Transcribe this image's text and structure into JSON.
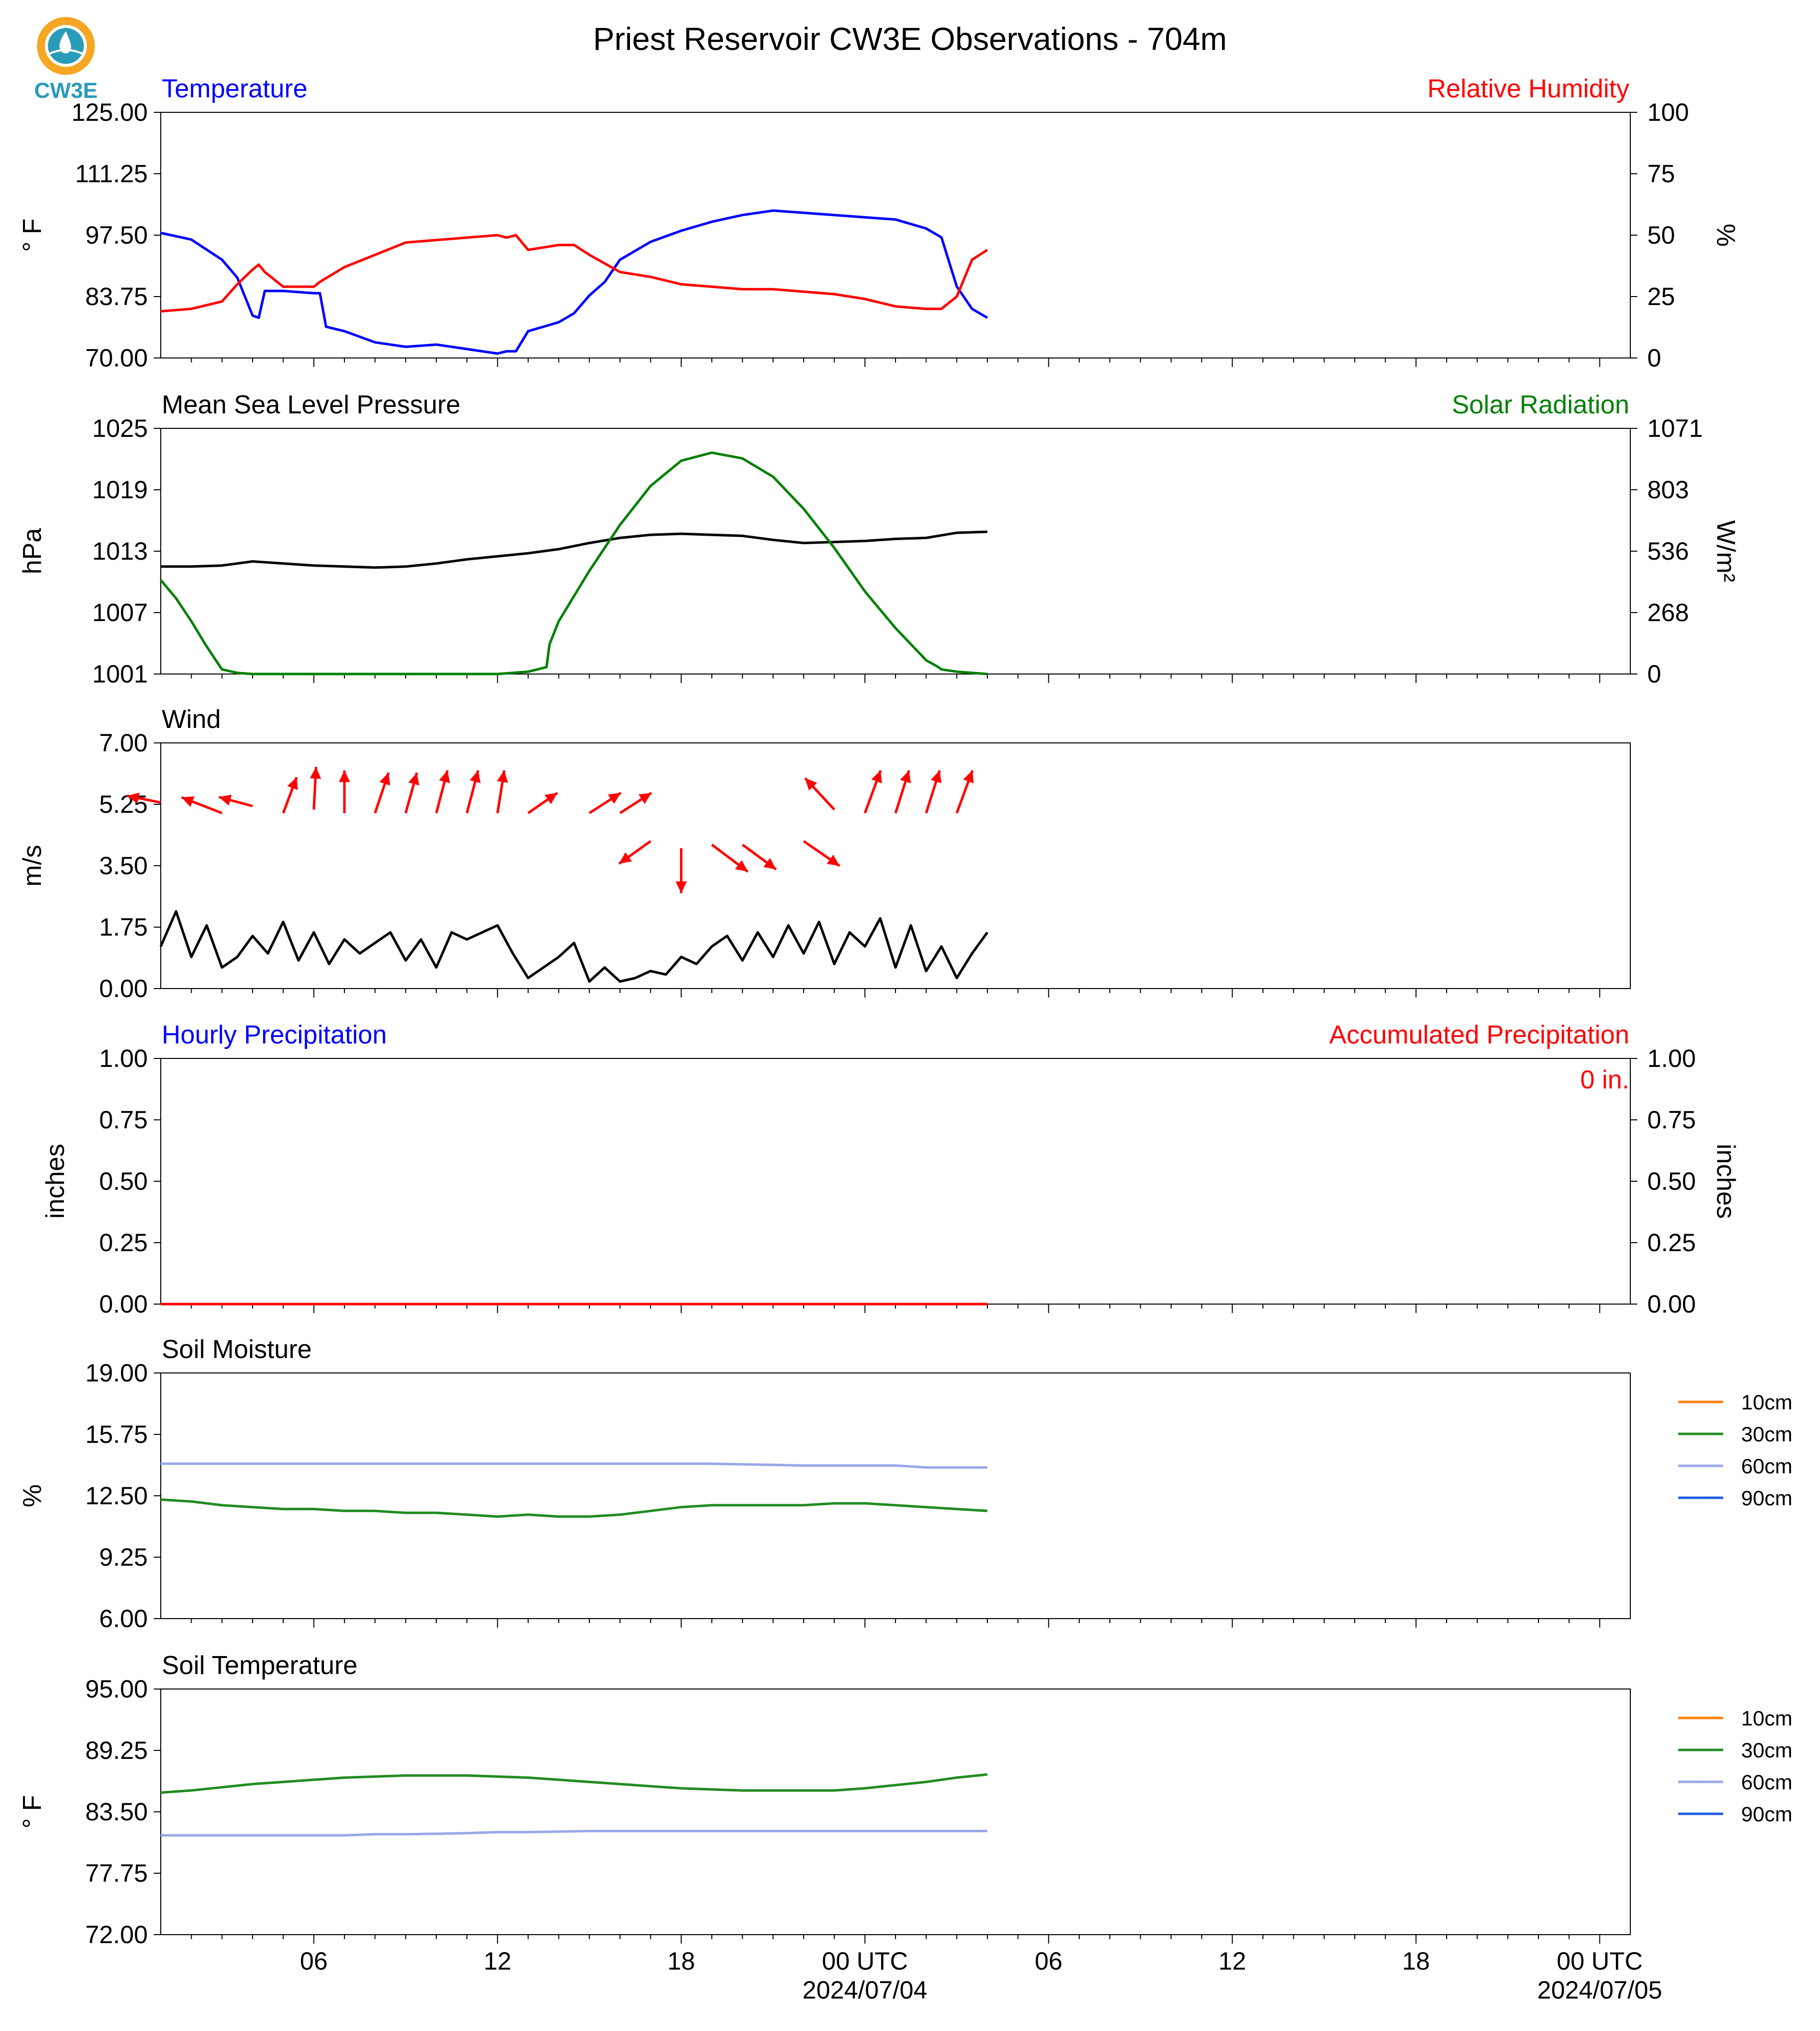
{
  "title": "Priest Reservoir CW3E Observations - 704m",
  "logo_text": "CW3E",
  "colors": {
    "temperature": "#0000ff",
    "humidity": "#ff0000",
    "solar": "#008000",
    "black": "#000000",
    "soil_10": "#ff7f0e",
    "soil_30": "#228b22",
    "soil_60": "#9aa8e8",
    "soil_90": "#1f5fe0",
    "logo_orange": "#f5a623",
    "logo_teal": "#2a9bb8"
  },
  "x_axis": {
    "range_hours": [
      0,
      48
    ],
    "ticks": [
      {
        "h": 5,
        "label": "06"
      },
      {
        "h": 11,
        "label": "12"
      },
      {
        "h": 17,
        "label": "18"
      },
      {
        "h": 23,
        "label": "00 UTC",
        "sub": "2024/07/04"
      },
      {
        "h": 29,
        "label": "06"
      },
      {
        "h": 35,
        "label": "12"
      },
      {
        "h": 41,
        "label": "18"
      },
      {
        "h": 47,
        "label": "00 UTC",
        "sub": "2024/07/05"
      }
    ],
    "data_end_hour": 27
  },
  "chart_data": [
    {
      "type": "line",
      "panel": "temperature_humidity",
      "left_title": "Temperature",
      "right_title": "Relative Humidity",
      "ylabel": "° F",
      "ylabel_right": "%",
      "ylim": [
        70,
        125
      ],
      "ylim_right": [
        0,
        100
      ],
      "yticks": [
        "125.00",
        "111.25",
        "97.50",
        "83.75",
        "70.00"
      ],
      "yticks_right": [
        "100",
        "75",
        "50",
        "25",
        "0"
      ],
      "series": [
        {
          "name": "Temperature",
          "axis": "left",
          "color": "#0000ff",
          "x": [
            0,
            1,
            2,
            2.5,
            3,
            3.2,
            3.4,
            4,
            5,
            5.2,
            5.4,
            6,
            7,
            8,
            9,
            10,
            11,
            11.3,
            11.6,
            12,
            12.5,
            13,
            13.5,
            14,
            14.5,
            15,
            16,
            17,
            18,
            19,
            20,
            21,
            22,
            23,
            24,
            25,
            25.5,
            26,
            26.5,
            27
          ],
          "y": [
            98,
            96.5,
            92,
            88,
            79.5,
            79,
            85,
            85,
            84.5,
            84.5,
            77,
            76,
            73.5,
            72.5,
            73,
            72,
            71,
            71.5,
            71.5,
            76,
            77,
            78,
            80,
            84,
            87,
            92,
            96,
            98.5,
            100.5,
            102,
            103,
            102.5,
            102,
            101.5,
            101,
            99,
            97,
            86,
            81,
            79
          ]
        },
        {
          "name": "Relative Humidity",
          "axis": "right",
          "color": "#ff0000",
          "x": [
            0,
            1,
            2,
            2.5,
            3,
            3.2,
            3.4,
            4,
            5,
            5.2,
            6,
            7,
            8,
            9,
            10,
            11,
            11.3,
            11.6,
            12,
            13,
            13.5,
            14,
            15,
            16,
            17,
            18,
            19,
            20,
            21,
            22,
            23,
            24,
            25,
            25.5,
            26,
            26.5,
            27
          ],
          "y": [
            19,
            20,
            23,
            30,
            36,
            38,
            35,
            29,
            29,
            31,
            37,
            42,
            47,
            48,
            49,
            50,
            49,
            50,
            44,
            46,
            46,
            42,
            35,
            33,
            30,
            29,
            28,
            28,
            27,
            26,
            24,
            21,
            20,
            20,
            25,
            40,
            44
          ]
        }
      ]
    },
    {
      "type": "line",
      "panel": "pressure_solar",
      "left_title": "Mean Sea Level Pressure",
      "right_title": "Solar Radiation",
      "ylabel": "hPa",
      "ylabel_right": "W/m²",
      "ylim": [
        1001,
        1025
      ],
      "ylim_right": [
        0,
        1071
      ],
      "yticks": [
        "1025",
        "1019",
        "1013",
        "1007",
        "1001"
      ],
      "yticks_right": [
        "1071",
        "803",
        "536",
        "268",
        "0"
      ],
      "series": [
        {
          "name": "Mean Sea Level Pressure",
          "axis": "left",
          "color": "#000000",
          "x": [
            0,
            1,
            2,
            3,
            4,
            5,
            6,
            7,
            8,
            9,
            10,
            11,
            12,
            13,
            14,
            15,
            16,
            17,
            18,
            19,
            20,
            21,
            22,
            23,
            24,
            25,
            26,
            27
          ],
          "y": [
            1011.5,
            1011.5,
            1011.6,
            1012,
            1011.8,
            1011.6,
            1011.5,
            1011.4,
            1011.5,
            1011.8,
            1012.2,
            1012.5,
            1012.8,
            1013.2,
            1013.8,
            1014.3,
            1014.6,
            1014.7,
            1014.6,
            1014.5,
            1014.1,
            1013.8,
            1013.9,
            1014.0,
            1014.2,
            1014.3,
            1014.8,
            1014.9
          ]
        },
        {
          "name": "Solar Radiation",
          "axis": "right",
          "color": "#008000",
          "x": [
            0,
            0.5,
            1,
            1.5,
            1.9,
            2,
            2.5,
            3,
            5,
            7,
            9,
            11,
            12,
            12.6,
            12.7,
            13,
            14,
            15,
            16,
            17,
            18,
            19,
            20,
            21,
            22,
            23,
            24,
            25,
            25.4,
            25.5,
            26,
            27
          ],
          "y": [
            410,
            330,
            230,
            120,
            40,
            20,
            5,
            0,
            0,
            0,
            0,
            0,
            10,
            30,
            130,
            230,
            450,
            650,
            820,
            930,
            965,
            940,
            860,
            720,
            550,
            360,
            200,
            60,
            30,
            20,
            10,
            0
          ]
        }
      ]
    },
    {
      "type": "line",
      "panel": "wind",
      "left_title": "Wind",
      "ylabel": "m/s",
      "ylim": [
        0,
        7
      ],
      "yticks": [
        "7.00",
        "5.25",
        "3.50",
        "1.75",
        "0.00"
      ],
      "series": [
        {
          "name": "Wind",
          "axis": "left",
          "color": "#000000",
          "x": [
            0,
            0.5,
            1,
            1.5,
            2,
            2.5,
            3,
            3.5,
            4,
            4.5,
            5,
            5.5,
            6,
            6.5,
            7,
            7.5,
            8,
            8.5,
            9,
            9.5,
            10,
            10.5,
            11,
            11.5,
            12,
            12.5,
            13,
            13.5,
            14,
            14.5,
            15,
            15.5,
            16,
            16.5,
            17,
            17.5,
            18,
            18.5,
            19,
            19.5,
            20,
            20.5,
            21,
            21.5,
            22,
            22.5,
            23,
            23.5,
            24,
            24.5,
            25,
            25.5,
            26,
            26.5,
            27
          ],
          "y": [
            1.2,
            2.2,
            0.9,
            1.8,
            0.6,
            0.9,
            1.5,
            1.0,
            1.9,
            0.8,
            1.6,
            0.7,
            1.4,
            1.0,
            1.3,
            1.6,
            0.8,
            1.4,
            0.6,
            1.6,
            1.4,
            1.6,
            1.8,
            1.0,
            0.3,
            0.6,
            0.9,
            1.3,
            0.2,
            0.6,
            0.2,
            0.3,
            0.5,
            0.4,
            0.9,
            0.7,
            1.2,
            1.5,
            0.8,
            1.6,
            0.9,
            1.8,
            1.0,
            1.9,
            0.7,
            1.6,
            1.2,
            2.0,
            0.6,
            1.8,
            0.5,
            1.2,
            0.3,
            1.0,
            1.6
          ]
        },
        {
          "name": "Wind Direction",
          "type": "quiver",
          "color": "#ff0000",
          "x": [
            0,
            2,
            3,
            4,
            5,
            6,
            7,
            8,
            9,
            10,
            11,
            12,
            14,
            15,
            16,
            17,
            18,
            19,
            21,
            22,
            23,
            24,
            25,
            26
          ],
          "y": [
            5.3,
            5.0,
            5.2,
            5.0,
            5.1,
            5.0,
            5.0,
            5.0,
            5.0,
            5.0,
            5.0,
            5.0,
            5.0,
            5.0,
            4.2,
            4.0,
            4.1,
            4.1,
            4.2,
            5.1,
            5.0,
            5.0,
            5.0,
            5.0
          ],
          "u": [
            -1.5,
            -1.8,
            -1.5,
            0.6,
            0.1,
            0,
            0.6,
            0.5,
            0.5,
            0.5,
            0.3,
            1.3,
            1.4,
            1.4,
            -1.4,
            0,
            1.6,
            1.5,
            1.6,
            -1.3,
            0.7,
            0.6,
            0.6,
            0.7
          ],
          "v": [
            0.3,
            0.7,
            0.4,
            1.6,
            1.9,
            1.9,
            1.8,
            1.8,
            1.9,
            1.9,
            1.9,
            0.9,
            0.9,
            0.9,
            -1.0,
            -2.0,
            -1.2,
            -1.1,
            -1.1,
            1.4,
            1.9,
            1.9,
            1.9,
            1.9
          ]
        }
      ]
    },
    {
      "type": "line",
      "panel": "precipitation",
      "left_title": "Hourly Precipitation",
      "right_title": "Accumulated Precipitation",
      "annotation": "0 in.",
      "ylabel": "inches",
      "ylabel_right": "inches",
      "ylim": [
        0,
        1
      ],
      "ylim_right": [
        0,
        1
      ],
      "yticks": [
        "1.00",
        "0.75",
        "0.50",
        "0.25",
        "0.00"
      ],
      "yticks_right": [
        "1.00",
        "0.75",
        "0.50",
        "0.25",
        "0.00"
      ],
      "series": [
        {
          "name": "Hourly Precipitation",
          "axis": "left",
          "color": "#0000ff",
          "x": [
            0,
            27
          ],
          "y": [
            0,
            0
          ]
        },
        {
          "name": "Accumulated Precipitation",
          "axis": "right",
          "color": "#ff0000",
          "x": [
            0,
            27
          ],
          "y": [
            0,
            0
          ]
        }
      ]
    },
    {
      "type": "line",
      "panel": "soil_moisture",
      "left_title": "Soil Moisture",
      "ylabel": "%",
      "ylim": [
        6,
        19
      ],
      "yticks": [
        "19.00",
        "15.75",
        "12.50",
        "9.25",
        "6.00"
      ],
      "legend": [
        "10cm",
        "30cm",
        "60cm",
        "90cm"
      ],
      "series": [
        {
          "name": "30cm",
          "axis": "left",
          "color": "#228b22",
          "x": [
            0,
            1,
            2,
            3,
            4,
            5,
            6,
            7,
            8,
            9,
            10,
            11,
            12,
            13,
            14,
            15,
            16,
            17,
            18,
            19,
            20,
            21,
            22,
            23,
            24,
            25,
            26,
            27
          ],
          "y": [
            12.3,
            12.2,
            12.0,
            11.9,
            11.8,
            11.8,
            11.7,
            11.7,
            11.6,
            11.6,
            11.5,
            11.4,
            11.5,
            11.4,
            11.4,
            11.5,
            11.7,
            11.9,
            12.0,
            12.0,
            12.0,
            12.0,
            12.1,
            12.1,
            12.0,
            11.9,
            11.8,
            11.7
          ]
        },
        {
          "name": "60cm",
          "axis": "left",
          "color": "#9aa8e8",
          "x": [
            0,
            3,
            6,
            9,
            12,
            15,
            18,
            21,
            23,
            24,
            25,
            26,
            27
          ],
          "y": [
            14.2,
            14.2,
            14.2,
            14.2,
            14.2,
            14.2,
            14.2,
            14.1,
            14.1,
            14.1,
            14.0,
            14.0,
            14.0
          ]
        }
      ]
    },
    {
      "type": "line",
      "panel": "soil_temperature",
      "left_title": "Soil Temperature",
      "ylabel": "° F",
      "ylim": [
        72,
        95
      ],
      "yticks": [
        "95.00",
        "89.25",
        "83.50",
        "77.75",
        "72.00"
      ],
      "legend": [
        "10cm",
        "30cm",
        "60cm",
        "90cm"
      ],
      "series": [
        {
          "name": "30cm",
          "axis": "left",
          "color": "#228b22",
          "x": [
            0,
            1,
            2,
            3,
            4,
            5,
            6,
            7,
            8,
            9,
            10,
            11,
            12,
            13,
            14,
            15,
            16,
            17,
            18,
            19,
            20,
            21,
            22,
            23,
            24,
            25,
            26,
            27
          ],
          "y": [
            85.3,
            85.5,
            85.8,
            86.1,
            86.3,
            86.5,
            86.7,
            86.8,
            86.9,
            86.9,
            86.9,
            86.8,
            86.7,
            86.5,
            86.3,
            86.1,
            85.9,
            85.7,
            85.6,
            85.5,
            85.5,
            85.5,
            85.5,
            85.7,
            86.0,
            86.3,
            86.7,
            87.0
          ]
        },
        {
          "name": "60cm",
          "axis": "left",
          "color": "#9aa8e8",
          "x": [
            0,
            2,
            4,
            6,
            7,
            8,
            10,
            11,
            12,
            14,
            16,
            18,
            20,
            22,
            24,
            27
          ],
          "y": [
            81.3,
            81.3,
            81.3,
            81.3,
            81.4,
            81.4,
            81.5,
            81.6,
            81.6,
            81.7,
            81.7,
            81.7,
            81.7,
            81.7,
            81.7,
            81.7
          ]
        }
      ]
    }
  ]
}
